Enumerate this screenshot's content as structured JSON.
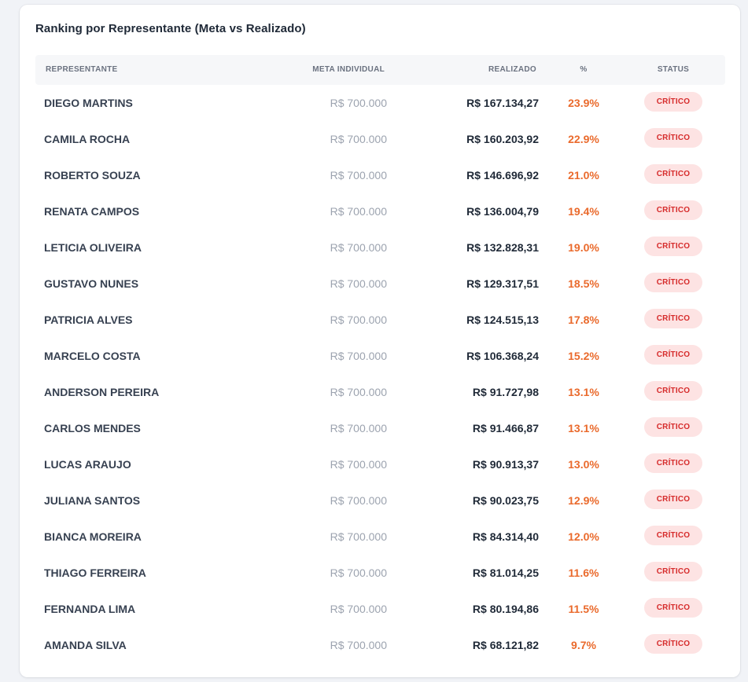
{
  "card": {
    "title": "Ranking por Representante (Meta vs Realizado)"
  },
  "table": {
    "headers": {
      "name": "REPRESENTANTE",
      "meta": "META INDIVIDUAL",
      "real": "REALIZADO",
      "pct": "%",
      "status": "STATUS"
    },
    "rows": [
      {
        "name": "DIEGO MARTINS",
        "meta": "R$ 700.000",
        "real": "R$ 167.134,27",
        "pct": "23.9%",
        "status": "CRÍTICO"
      },
      {
        "name": "CAMILA ROCHA",
        "meta": "R$ 700.000",
        "real": "R$ 160.203,92",
        "pct": "22.9%",
        "status": "CRÍTICO"
      },
      {
        "name": "ROBERTO SOUZA",
        "meta": "R$ 700.000",
        "real": "R$ 146.696,92",
        "pct": "21.0%",
        "status": "CRÍTICO"
      },
      {
        "name": "RENATA CAMPOS",
        "meta": "R$ 700.000",
        "real": "R$ 136.004,79",
        "pct": "19.4%",
        "status": "CRÍTICO"
      },
      {
        "name": "LETICIA OLIVEIRA",
        "meta": "R$ 700.000",
        "real": "R$ 132.828,31",
        "pct": "19.0%",
        "status": "CRÍTICO"
      },
      {
        "name": "GUSTAVO NUNES",
        "meta": "R$ 700.000",
        "real": "R$ 129.317,51",
        "pct": "18.5%",
        "status": "CRÍTICO"
      },
      {
        "name": "PATRICIA ALVES",
        "meta": "R$ 700.000",
        "real": "R$ 124.515,13",
        "pct": "17.8%",
        "status": "CRÍTICO"
      },
      {
        "name": "MARCELO COSTA",
        "meta": "R$ 700.000",
        "real": "R$ 106.368,24",
        "pct": "15.2%",
        "status": "CRÍTICO"
      },
      {
        "name": "ANDERSON PEREIRA",
        "meta": "R$ 700.000",
        "real": "R$ 91.727,98",
        "pct": "13.1%",
        "status": "CRÍTICO"
      },
      {
        "name": "CARLOS MENDES",
        "meta": "R$ 700.000",
        "real": "R$ 91.466,87",
        "pct": "13.1%",
        "status": "CRÍTICO"
      },
      {
        "name": "LUCAS ARAUJO",
        "meta": "R$ 700.000",
        "real": "R$ 90.913,37",
        "pct": "13.0%",
        "status": "CRÍTICO"
      },
      {
        "name": "JULIANA SANTOS",
        "meta": "R$ 700.000",
        "real": "R$ 90.023,75",
        "pct": "12.9%",
        "status": "CRÍTICO"
      },
      {
        "name": "BIANCA MOREIRA",
        "meta": "R$ 700.000",
        "real": "R$ 84.314,40",
        "pct": "12.0%",
        "status": "CRÍTICO"
      },
      {
        "name": "THIAGO FERREIRA",
        "meta": "R$ 700.000",
        "real": "R$ 81.014,25",
        "pct": "11.6%",
        "status": "CRÍTICO"
      },
      {
        "name": "FERNANDA LIMA",
        "meta": "R$ 700.000",
        "real": "R$ 80.194,86",
        "pct": "11.5%",
        "status": "CRÍTICO"
      },
      {
        "name": "AMANDA SILVA",
        "meta": "R$ 700.000",
        "real": "R$ 68.121,82",
        "pct": "9.7%",
        "status": "CRÍTICO"
      }
    ]
  },
  "colors": {
    "page_background": "#f1f3f7",
    "card_background": "#ffffff",
    "header_background": "#f6f7f9",
    "percent_text": "#ea6a2c",
    "badge_background": "#fde3e3",
    "badge_text": "#d62b2b"
  }
}
